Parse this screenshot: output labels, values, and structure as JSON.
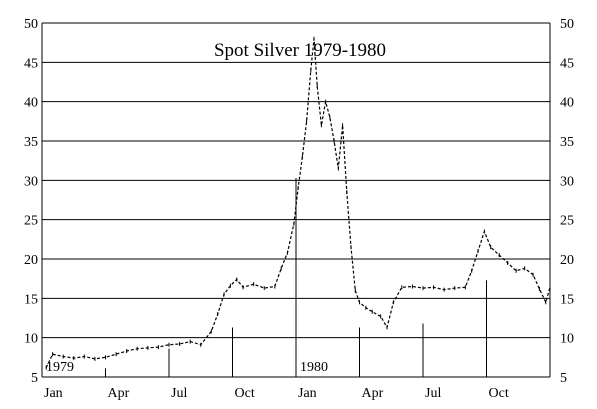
{
  "chart_data": {
    "type": "line",
    "title": "Spot Silver 1979-1980",
    "xlabel": "",
    "ylabel": "",
    "ylim": [
      5,
      50
    ],
    "yticks": [
      5,
      10,
      15,
      20,
      25,
      30,
      35,
      40,
      45,
      50
    ],
    "y_tick_labels": [
      "5",
      "10",
      "15",
      "20",
      "25",
      "30",
      "35",
      "40",
      "45",
      "50"
    ],
    "xlim": [
      0,
      24
    ],
    "x_ticks": [
      {
        "month": 0,
        "label": "Jan"
      },
      {
        "month": 3,
        "label": "Apr"
      },
      {
        "month": 6,
        "label": "Jul"
      },
      {
        "month": 9,
        "label": "Oct"
      },
      {
        "month": 12,
        "label": "Jan"
      },
      {
        "month": 15,
        "label": "Apr"
      },
      {
        "month": 18,
        "label": "Jul"
      },
      {
        "month": 21,
        "label": "Oct"
      }
    ],
    "year_labels": [
      {
        "month": 0,
        "label": "1979"
      },
      {
        "month": 12,
        "label": "1980"
      }
    ],
    "grid": "horizontal",
    "series": [
      {
        "values": [
          [
            0.2,
            6.2
          ],
          [
            0.5,
            7.9
          ],
          [
            1.0,
            7.6
          ],
          [
            1.5,
            7.4
          ],
          [
            2.0,
            7.6
          ],
          [
            2.5,
            7.3
          ],
          [
            3.0,
            7.5
          ],
          [
            3.5,
            7.9
          ],
          [
            4.0,
            8.3
          ],
          [
            4.5,
            8.6
          ],
          [
            5.0,
            8.7
          ],
          [
            5.5,
            8.8
          ],
          [
            6.0,
            9.1
          ],
          [
            6.5,
            9.2
          ],
          [
            7.0,
            9.5
          ],
          [
            7.5,
            9.1
          ],
          [
            8.0,
            10.8
          ],
          [
            8.3,
            13.0
          ],
          [
            8.6,
            15.5
          ],
          [
            8.9,
            16.6
          ],
          [
            9.2,
            17.4
          ],
          [
            9.5,
            16.4
          ],
          [
            10.0,
            16.8
          ],
          [
            10.5,
            16.3
          ],
          [
            11.0,
            16.5
          ],
          [
            11.3,
            18.8
          ],
          [
            11.6,
            20.8
          ],
          [
            11.9,
            24.5
          ],
          [
            12.1,
            29.0
          ],
          [
            12.3,
            33.0
          ],
          [
            12.5,
            37.5
          ],
          [
            12.7,
            44.0
          ],
          [
            12.85,
            48.0
          ],
          [
            13.0,
            42.0
          ],
          [
            13.2,
            37.0
          ],
          [
            13.4,
            40.0
          ],
          [
            13.6,
            38.0
          ],
          [
            13.8,
            35.0
          ],
          [
            14.0,
            31.5
          ],
          [
            14.2,
            37.0
          ],
          [
            14.4,
            28.5
          ],
          [
            14.6,
            21.5
          ],
          [
            14.8,
            16.0
          ],
          [
            15.0,
            14.5
          ],
          [
            15.3,
            13.8
          ],
          [
            15.6,
            13.3
          ],
          [
            16.0,
            12.7
          ],
          [
            16.3,
            11.3
          ],
          [
            16.6,
            14.5
          ],
          [
            17.0,
            16.4
          ],
          [
            17.5,
            16.5
          ],
          [
            18.0,
            16.3
          ],
          [
            18.5,
            16.4
          ],
          [
            19.0,
            16.1
          ],
          [
            19.5,
            16.3
          ],
          [
            20.0,
            16.4
          ],
          [
            20.3,
            18.5
          ],
          [
            20.6,
            21.0
          ],
          [
            20.9,
            23.5
          ],
          [
            21.2,
            21.5
          ],
          [
            21.6,
            20.5
          ],
          [
            22.0,
            19.5
          ],
          [
            22.4,
            18.5
          ],
          [
            22.8,
            18.8
          ],
          [
            23.2,
            18.0
          ],
          [
            23.5,
            16.2
          ],
          [
            23.8,
            14.5
          ],
          [
            24.0,
            16.4
          ]
        ]
      }
    ],
    "spikes": [
      {
        "month": 3.0,
        "value": 6.1
      },
      {
        "month": 6.0,
        "value": 8.6
      },
      {
        "month": 9.0,
        "value": 11.3
      },
      {
        "month": 12.0,
        "value": 30.3
      },
      {
        "month": 15.0,
        "value": 11.3
      },
      {
        "month": 18.0,
        "value": 11.8
      },
      {
        "month": 21.0,
        "value": 17.3
      },
      {
        "month": 24.0,
        "value": 22.0
      }
    ],
    "colors": {
      "line": "#000000",
      "grid": "#000000",
      "background": "#ffffff"
    }
  }
}
